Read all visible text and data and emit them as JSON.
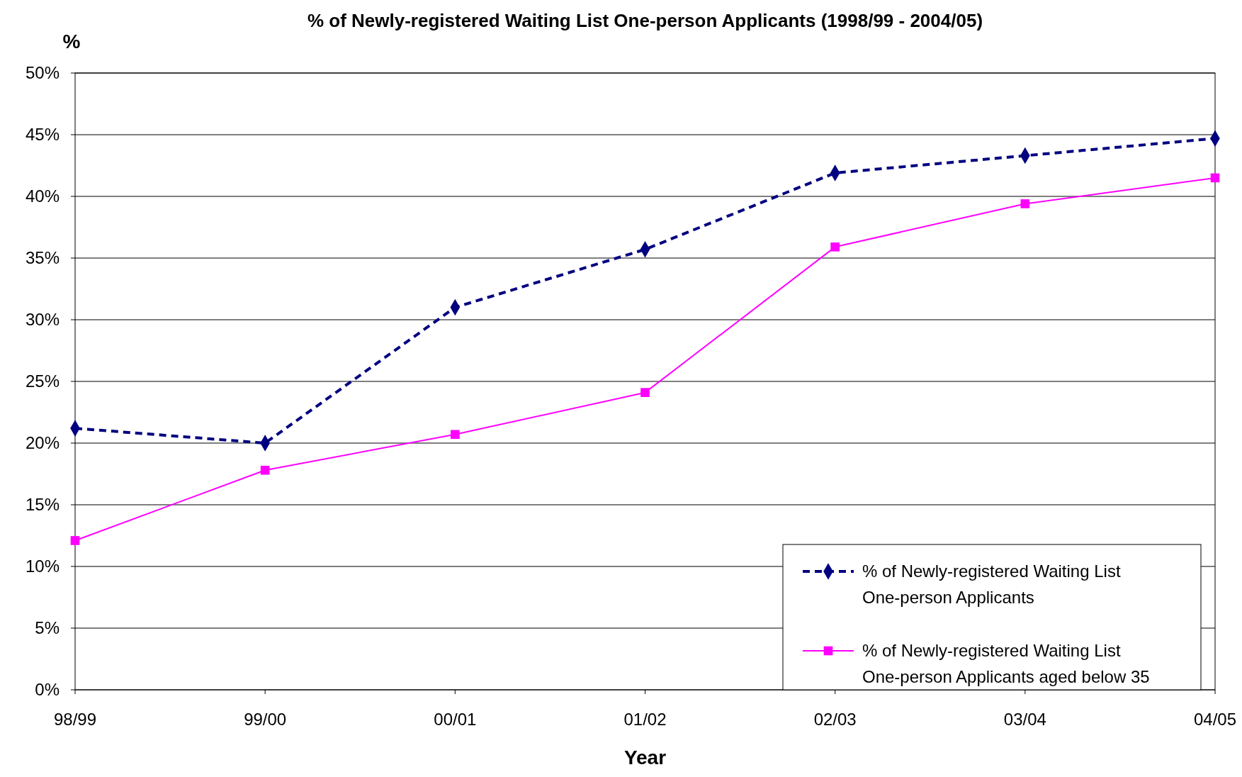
{
  "chart_data": {
    "type": "line",
    "title": "% of Newly-registered Waiting List One-person Applicants (1998/99 - 2004/05)",
    "xlabel": "Year",
    "ylabel": "%",
    "categories": [
      "98/99",
      "99/00",
      "00/01",
      "01/02",
      "02/03",
      "03/04",
      "04/05"
    ],
    "series": [
      {
        "name": "% of Newly-registered Waiting List One-person Applicants",
        "color": "#000080",
        "marker": "diamond",
        "line_style": "dashed",
        "values": [
          21.2,
          20.0,
          31.0,
          35.7,
          41.9,
          43.3,
          44.7
        ]
      },
      {
        "name": "% of Newly-registered Waiting List One-person Applicants aged below 35",
        "color": "#ff00ff",
        "marker": "square",
        "line_style": "solid",
        "values": [
          12.1,
          17.8,
          20.7,
          24.1,
          35.9,
          39.4,
          41.5
        ]
      }
    ],
    "ylim": [
      0,
      50
    ],
    "yticks": [
      {
        "value": 0,
        "label": "0%"
      },
      {
        "value": 5,
        "label": "5%"
      },
      {
        "value": 10,
        "label": "10%"
      },
      {
        "value": 15,
        "label": "15%"
      },
      {
        "value": 20,
        "label": "20%"
      },
      {
        "value": 25,
        "label": "25%"
      },
      {
        "value": 30,
        "label": "30%"
      },
      {
        "value": 35,
        "label": "35%"
      },
      {
        "value": 40,
        "label": "40%"
      },
      {
        "value": 45,
        "label": "45%"
      },
      {
        "value": 50,
        "label": "50%"
      }
    ],
    "grid": "y",
    "legend": "bottom right"
  }
}
